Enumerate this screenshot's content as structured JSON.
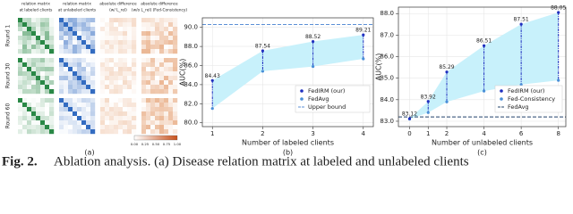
{
  "panel_a": {
    "headers": [
      "relation matrix",
      "at labeled clients",
      "relation matrix",
      "at unlabeled clients",
      "absolute difference",
      "(w/ L_rel)",
      "absolute difference",
      "(w/o L_rel) (Fed-Consistency)"
    ],
    "rows": [
      "Round 1",
      "Round 30",
      "Round 60"
    ],
    "colorbar_ticks": [
      "0.00",
      "0.25",
      "0.50",
      "0.75",
      "1.00"
    ],
    "label": "(a)"
  },
  "chart_data": [
    {
      "type": "range",
      "label": "(b)",
      "x_label": "Number of labeled clients",
      "y_label": "AUC(%)",
      "x": [
        1,
        2,
        3,
        4
      ],
      "xlim": [
        0.8,
        4.2
      ],
      "xticks": [
        1,
        2,
        3,
        4
      ],
      "ylim": [
        79.6,
        91.0
      ],
      "yticks": [
        {
          "value": 80,
          "label": "80.0"
        },
        {
          "value": 82,
          "label": "82.0"
        },
        {
          "value": 84,
          "label": "84.0"
        },
        {
          "value": 86,
          "label": "86.0"
        },
        {
          "value": 88,
          "label": "88.0"
        },
        {
          "value": 90,
          "label": "90.0"
        }
      ],
      "grid": true,
      "series": [
        {
          "name": "FedIRM (our)",
          "color": "#1f2fbf",
          "values": [
            84.43,
            87.54,
            88.52,
            89.21
          ]
        },
        {
          "name": "FedAvg",
          "color": "#4a8fd8",
          "values": [
            81.5,
            85.4,
            85.9,
            86.7
          ]
        }
      ],
      "reference": {
        "name": "Upper bound",
        "value": 90.3,
        "color": "#5b8fd6"
      },
      "fill": "#c8f1fb"
    },
    {
      "type": "range",
      "label": "(c)",
      "x_label": "Number of unlabeled clients",
      "y_label": "AUC(%)",
      "x": [
        0,
        1,
        2,
        4,
        6,
        8
      ],
      "xlim": [
        -0.6,
        8.4
      ],
      "xticks": [
        0,
        1,
        2,
        4,
        6,
        8
      ],
      "ylim": [
        82.75,
        88.3
      ],
      "yticks": [
        {
          "value": 83,
          "label": "83.0"
        },
        {
          "value": 84,
          "label": "84.0"
        },
        {
          "value": 85,
          "label": "85.0"
        },
        {
          "value": 86,
          "label": "86.0"
        },
        {
          "value": 87,
          "label": "87.0"
        },
        {
          "value": 88,
          "label": "88.0"
        }
      ],
      "grid": true,
      "series": [
        {
          "name": "FedIRM (our)",
          "color": "#1f2fbf",
          "values": [
            83.12,
            83.92,
            85.29,
            86.51,
            87.51,
            88.05
          ]
        },
        {
          "name": "Fed-Consistency",
          "color": "#4a8fd8",
          "values": [
            83.1,
            83.4,
            83.9,
            84.4,
            84.7,
            84.9
          ]
        }
      ],
      "reference": {
        "name": "FedAvg",
        "value": 83.2,
        "color": "#20406a"
      },
      "fill": "#c8f1fb"
    }
  ],
  "caption": {
    "fig": "Fig. 2.",
    "text": "Ablation analysis. (a) Disease relation matrix at labeled and unlabeled clients"
  }
}
